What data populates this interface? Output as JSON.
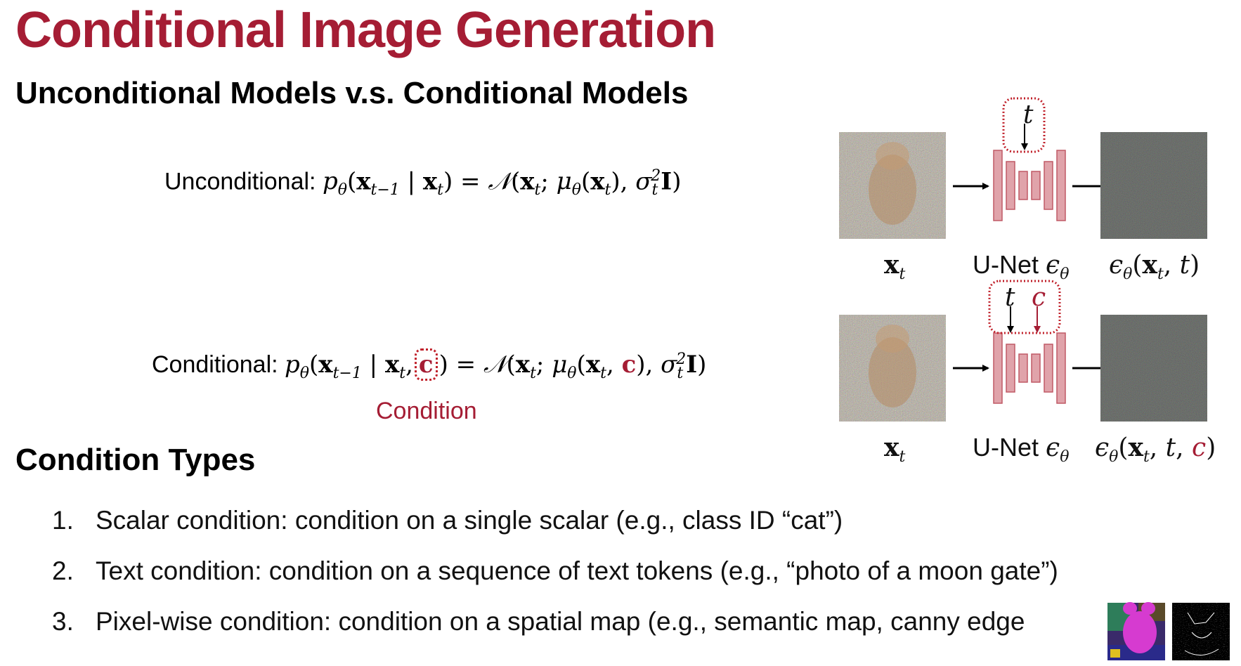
{
  "title": "Conditional Image Generation",
  "subtitle": "Unconditional Models v.s. Conditional Models",
  "equations": {
    "unconditional_label": "Unconditional:",
    "conditional_label": "Conditional:",
    "condition_symbol": "c",
    "condition_annotation": "Condition"
  },
  "diagram": {
    "input_caption": "x",
    "input_caption_sub": "t",
    "network_label": "U-Net",
    "network_symbol": "ϵ",
    "network_symbol_sub": "θ",
    "unconditional_output": "ϵθ(xt, t)",
    "conditional_output": "ϵθ(xt, t, c)",
    "timestep_symbol": "t",
    "condition_symbol": "c"
  },
  "condition_types_heading": "Condition Types",
  "condition_types": [
    {
      "num": "1.",
      "text": "Scalar condition: condition on a single scalar (e.g., class ID “cat”)"
    },
    {
      "num": "2.",
      "text": "Text condition: condition on a sequence of text tokens (e.g., “photo of a moon gate”)"
    },
    {
      "num": "3.",
      "text": "Pixel-wise condition: condition on a spatial map (e.g., semantic map, canny edge"
    }
  ],
  "colors": {
    "accent": "#a51d34",
    "unet_fill": "#e0a3aa",
    "unet_stroke": "#c05a66",
    "dotted_box": "#c0202a"
  },
  "icons": {
    "noisy_cat_image": "noisy-cat-image",
    "noise_output_image": "noise-image",
    "semantic_map_thumbnail": "semantic-map-image",
    "canny_edge_thumbnail": "canny-edge-image"
  }
}
